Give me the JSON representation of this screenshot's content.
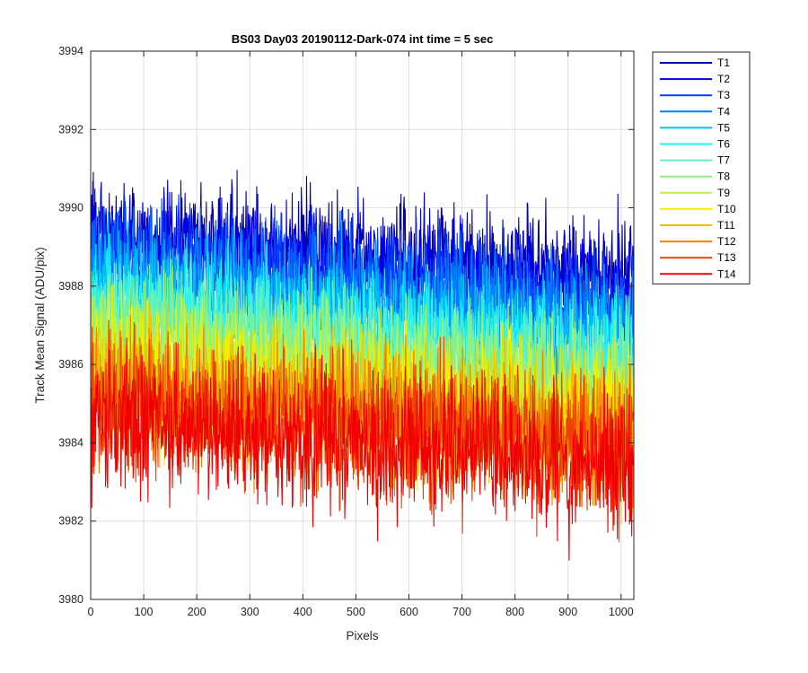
{
  "chart_data": {
    "type": "line",
    "title": "BS03 Day03 20190112-Dark-074 int time = 5 sec",
    "xlabel": "Pixels",
    "ylabel": "Track Mean Signal (ADU/pix)",
    "xlim": [
      0,
      1024
    ],
    "ylim": [
      3980,
      3994
    ],
    "xticks": [
      0,
      100,
      200,
      300,
      400,
      500,
      600,
      700,
      800,
      900,
      1000
    ],
    "yticks": [
      3980,
      3982,
      3984,
      3986,
      3988,
      3990,
      3992,
      3994
    ],
    "grid": true,
    "legend_position": "outside-top-right",
    "n_points": 1024,
    "series": [
      {
        "name": "T1",
        "color": "#0000B4",
        "mean_start": 3989.3,
        "mean_end": 3988.2,
        "noise_sd": 0.75,
        "range": [
          3986.3,
          3992.1
        ]
      },
      {
        "name": "T2",
        "color": "#0000E6",
        "mean_start": 3989.0,
        "mean_end": 3987.9,
        "noise_sd": 0.75,
        "range": [
          3986.0,
          3991.5
        ]
      },
      {
        "name": "T3",
        "color": "#0040FF",
        "mean_start": 3988.7,
        "mean_end": 3987.5,
        "noise_sd": 0.75,
        "range": [
          3985.8,
          3991.0
        ]
      },
      {
        "name": "T4",
        "color": "#0080FF",
        "mean_start": 3988.4,
        "mean_end": 3987.1,
        "noise_sd": 0.75,
        "range": [
          3985.5,
          3990.6
        ]
      },
      {
        "name": "T5",
        "color": "#00C0FF",
        "mean_start": 3988.0,
        "mean_end": 3986.6,
        "noise_sd": 0.75,
        "range": [
          3985.0,
          3990.2
        ]
      },
      {
        "name": "T6",
        "color": "#20F0F0",
        "mean_start": 3987.6,
        "mean_end": 3986.2,
        "noise_sd": 0.75,
        "range": [
          3984.6,
          3989.8
        ]
      },
      {
        "name": "T7",
        "color": "#60F0C0",
        "mean_start": 3987.2,
        "mean_end": 3985.8,
        "noise_sd": 0.8,
        "range": [
          3984.2,
          3989.4
        ]
      },
      {
        "name": "T8",
        "color": "#90F080",
        "mean_start": 3986.8,
        "mean_end": 3985.4,
        "noise_sd": 0.8,
        "range": [
          3983.8,
          3989.0
        ]
      },
      {
        "name": "T9",
        "color": "#C0F040",
        "mean_start": 3986.4,
        "mean_end": 3985.0,
        "noise_sd": 0.8,
        "range": [
          3983.4,
          3988.6
        ]
      },
      {
        "name": "T10",
        "color": "#F0F000",
        "mean_start": 3986.0,
        "mean_end": 3984.7,
        "noise_sd": 0.85,
        "range": [
          3981.0,
          3988.2
        ]
      },
      {
        "name": "T11",
        "color": "#F0C000",
        "mean_start": 3985.6,
        "mean_end": 3984.4,
        "noise_sd": 0.85,
        "range": [
          3981.2,
          3987.9
        ]
      },
      {
        "name": "T12",
        "color": "#F08000",
        "mean_start": 3985.2,
        "mean_end": 3984.1,
        "noise_sd": 0.85,
        "range": [
          3981.0,
          3987.6
        ]
      },
      {
        "name": "T13",
        "color": "#F04000",
        "mean_start": 3984.9,
        "mean_end": 3983.8,
        "noise_sd": 0.9,
        "range": [
          3980.9,
          3987.4
        ]
      },
      {
        "name": "T14",
        "color": "#F00000",
        "mean_start": 3984.6,
        "mean_end": 3983.5,
        "noise_sd": 0.9,
        "range": [
          3980.3,
          3987.3
        ]
      }
    ]
  }
}
